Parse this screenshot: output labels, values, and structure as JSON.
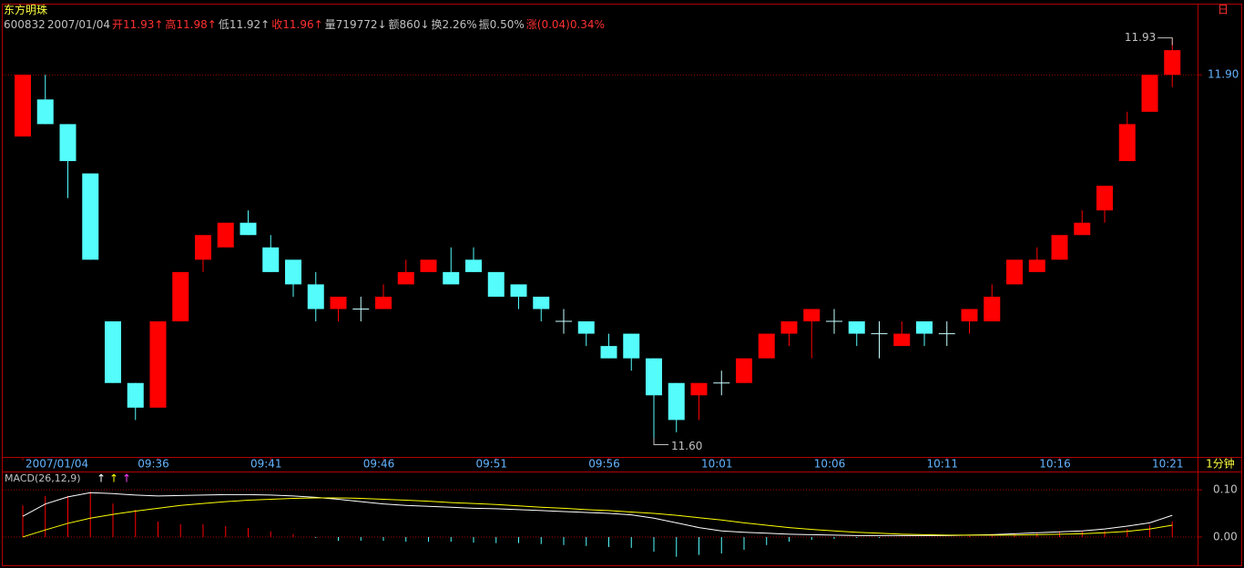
{
  "header": {
    "stock_name": "东方明珠",
    "toolbar_button": "日",
    "info": [
      {
        "text": "600832",
        "color": "#c0c0c0"
      },
      {
        "text": "2007/01/04",
        "color": "#c0c0c0"
      },
      {
        "text": "开11.93↑",
        "color": "#ff3030"
      },
      {
        "text": "高11.98↑",
        "color": "#ff3030"
      },
      {
        "text": "低11.92↑",
        "color": "#c0c0c0"
      },
      {
        "text": "收11.96↑",
        "color": "#ff3030"
      },
      {
        "text": "量719772↓",
        "color": "#c0c0c0"
      },
      {
        "text": "额860↓",
        "color": "#c0c0c0"
      },
      {
        "text": "换2.26%",
        "color": "#c0c0c0"
      },
      {
        "text": "振0.50%",
        "color": "#c0c0c0"
      },
      {
        "text": "涨(0.04)0.34%",
        "color": "#ff3030"
      }
    ]
  },
  "chart_data": [
    {
      "type": "candlestick",
      "categories": [
        "2007/01/04",
        null,
        null,
        null,
        null,
        null,
        "09:36",
        null,
        null,
        null,
        null,
        "09:41",
        null,
        null,
        null,
        null,
        "09:46",
        null,
        null,
        null,
        null,
        "09:51",
        null,
        null,
        null,
        null,
        "09:56",
        null,
        null,
        null,
        null,
        "10:01",
        null,
        null,
        null,
        null,
        "10:06",
        null,
        null,
        null,
        null,
        "10:11",
        null,
        null,
        null,
        null,
        "10:16",
        null,
        null,
        null,
        null,
        "10:21"
      ],
      "period_label": "1分钟",
      "open": [
        11.85,
        11.88,
        11.86,
        11.82,
        11.7,
        11.65,
        11.63,
        11.7,
        11.75,
        11.76,
        11.78,
        11.76,
        11.75,
        11.73,
        11.71,
        11.71,
        11.71,
        11.73,
        11.74,
        11.74,
        11.75,
        11.74,
        11.73,
        11.72,
        11.7,
        11.7,
        11.68,
        11.69,
        11.67,
        11.65,
        11.64,
        11.65,
        11.65,
        11.67,
        11.69,
        11.7,
        11.7,
        11.7,
        11.69,
        11.68,
        11.7,
        11.69,
        11.7,
        11.7,
        11.73,
        11.74,
        11.75,
        11.77,
        11.79,
        11.83,
        11.87,
        11.9
      ],
      "high": [
        11.9,
        11.9,
        11.86,
        11.82,
        11.7,
        11.65,
        11.7,
        11.74,
        11.77,
        11.78,
        11.79,
        11.77,
        11.75,
        11.74,
        11.72,
        11.72,
        11.73,
        11.75,
        11.75,
        11.76,
        11.76,
        11.74,
        11.73,
        11.72,
        11.71,
        11.7,
        11.69,
        11.69,
        11.67,
        11.65,
        11.65,
        11.66,
        11.67,
        11.69,
        11.7,
        11.71,
        11.71,
        11.7,
        11.7,
        11.7,
        11.7,
        11.7,
        11.71,
        11.73,
        11.75,
        11.76,
        11.77,
        11.79,
        11.81,
        11.87,
        11.9,
        11.93
      ],
      "low": [
        11.85,
        11.86,
        11.8,
        11.75,
        11.65,
        11.62,
        11.63,
        11.7,
        11.74,
        11.76,
        11.77,
        11.74,
        11.72,
        11.7,
        11.7,
        11.7,
        11.71,
        11.73,
        11.74,
        11.73,
        11.74,
        11.72,
        11.71,
        11.7,
        11.69,
        11.68,
        11.67,
        11.66,
        11.6,
        11.61,
        11.62,
        11.64,
        11.65,
        11.67,
        11.68,
        11.67,
        11.69,
        11.68,
        11.67,
        11.68,
        11.68,
        11.68,
        11.69,
        11.7,
        11.73,
        11.74,
        11.75,
        11.77,
        11.78,
        11.83,
        11.87,
        11.89
      ],
      "close": [
        11.9,
        11.86,
        11.83,
        11.75,
        11.65,
        11.63,
        11.7,
        11.74,
        11.77,
        11.78,
        11.77,
        11.74,
        11.73,
        11.71,
        11.72,
        11.71,
        11.72,
        11.74,
        11.75,
        11.73,
        11.74,
        11.72,
        11.72,
        11.71,
        11.7,
        11.69,
        11.67,
        11.67,
        11.64,
        11.62,
        11.65,
        11.65,
        11.67,
        11.69,
        11.7,
        11.71,
        11.7,
        11.69,
        11.69,
        11.69,
        11.69,
        11.69,
        11.71,
        11.72,
        11.75,
        11.75,
        11.77,
        11.78,
        11.81,
        11.86,
        11.9,
        11.92
      ],
      "up_color": "#ff0000",
      "down_color": "#54fcfc",
      "high_label": "11.93",
      "low_label": "11.60",
      "ylim": [
        11.59,
        11.957
      ],
      "yticks": [
        {
          "value": 11.9,
          "label": "11.90"
        }
      ],
      "grid": true
    },
    {
      "type": "macd",
      "title": "MACD(26,12,9)",
      "title_markers": [
        {
          "text": "↑",
          "color": "#ffffff"
        },
        {
          "text": "↑",
          "color": "#ffff00"
        },
        {
          "text": "↑",
          "color": "#ff40ff"
        }
      ],
      "ylim": [
        -0.058,
        0.135
      ],
      "yticks": [
        {
          "value": 0.1,
          "label": "0.10"
        },
        {
          "value": 0,
          "label": "0.00"
        }
      ],
      "grid": true,
      "series": [
        {
          "type": "bar",
          "up_color": "#ff0000",
          "down_color": "#54fcfc",
          "values": [
            0.067,
            0.087,
            0.087,
            0.096,
            0.071,
            0.058,
            0.033,
            0.027,
            0.027,
            0.023,
            0.019,
            0.012,
            0.006,
            -0.002,
            -0.008,
            -0.008,
            -0.008,
            -0.01,
            -0.01,
            -0.01,
            -0.012,
            -0.013,
            -0.013,
            -0.015,
            -0.017,
            -0.019,
            -0.021,
            -0.023,
            -0.031,
            -0.042,
            -0.038,
            -0.035,
            -0.027,
            -0.017,
            -0.01,
            -0.006,
            -0.004,
            -0.002,
            -0.002,
            0,
            0,
            0,
            0.002,
            0.004,
            0.008,
            0.008,
            0.01,
            0.012,
            0.013,
            0.017,
            0.025,
            0.033
          ]
        },
        {
          "type": "line",
          "color": "#ffffff",
          "values": [
            0.044,
            0.07,
            0.085,
            0.094,
            0.092,
            0.089,
            0.087,
            0.088,
            0.089,
            0.09,
            0.09,
            0.089,
            0.087,
            0.084,
            0.08,
            0.075,
            0.07,
            0.067,
            0.065,
            0.063,
            0.061,
            0.06,
            0.058,
            0.056,
            0.054,
            0.052,
            0.05,
            0.047,
            0.04,
            0.03,
            0.02,
            0.013,
            0.01,
            0.008,
            0.006,
            0.005,
            0.004,
            0.003,
            0.003,
            0.003,
            0.003,
            0.003,
            0.004,
            0.005,
            0.007,
            0.009,
            0.011,
            0.013,
            0.017,
            0.023,
            0.03,
            0.046
          ]
        },
        {
          "type": "line",
          "color": "#ffff00",
          "values": [
            0.0,
            0.015,
            0.029,
            0.04,
            0.048,
            0.055,
            0.061,
            0.067,
            0.071,
            0.075,
            0.078,
            0.08,
            0.082,
            0.083,
            0.083,
            0.082,
            0.08,
            0.078,
            0.076,
            0.073,
            0.071,
            0.069,
            0.066,
            0.063,
            0.061,
            0.058,
            0.056,
            0.053,
            0.05,
            0.046,
            0.041,
            0.036,
            0.03,
            0.025,
            0.02,
            0.016,
            0.013,
            0.01,
            0.008,
            0.006,
            0.005,
            0.004,
            0.004,
            0.004,
            0.004,
            0.005,
            0.006,
            0.007,
            0.009,
            0.012,
            0.017,
            0.025
          ]
        }
      ]
    }
  ]
}
